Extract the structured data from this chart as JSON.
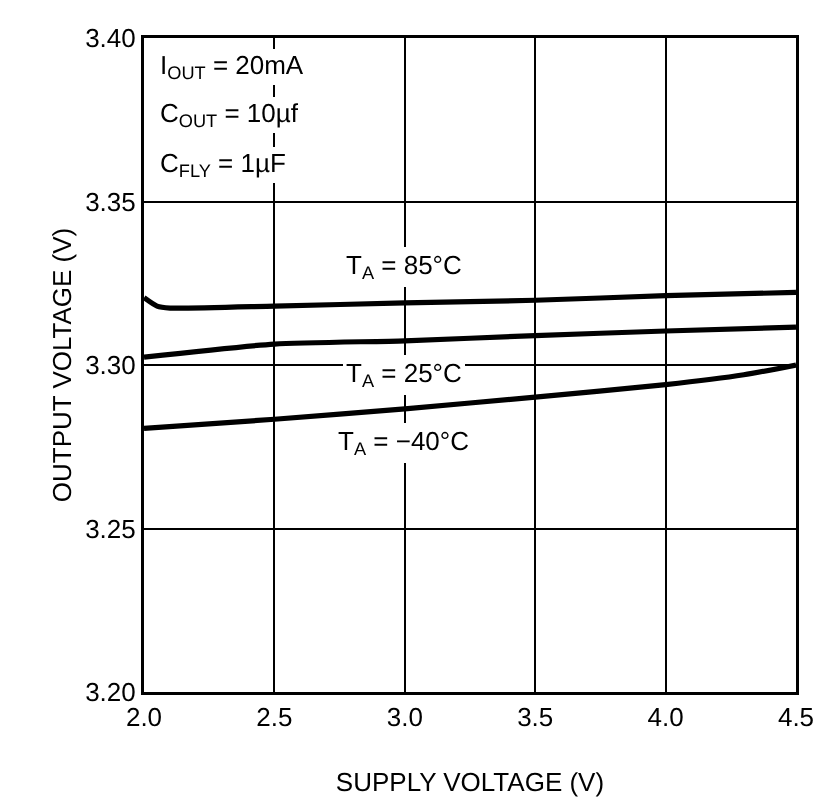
{
  "chart_data": {
    "type": "line",
    "xlabel": "SUPPLY VOLTAGE (V)",
    "ylabel": "OUTPUT VOLTAGE (V)",
    "xlim": [
      2.0,
      4.5
    ],
    "xticks": [
      {
        "value": 2,
        "label": "2.0"
      },
      2.5,
      {
        "value": 3,
        "label": "3.0"
      },
      3.5,
      {
        "value": 4,
        "label": "4.0"
      },
      4.5
    ],
    "ylim": [
      3.2,
      3.4
    ],
    "yticks": [
      {
        "value": 3.2,
        "label": "3.20"
      },
      3.25,
      {
        "value": 3.3,
        "label": "3.30"
      },
      3.35,
      {
        "value": 3.4,
        "label": "3.40"
      }
    ],
    "grid": true,
    "legend": false,
    "marker": "none",
    "line_style": "solid",
    "series": [
      {
        "name": "T$_{A}$ = 85°C",
        "color": "#000000",
        "x": [
          2.0,
          2.05,
          2.1,
          2.5,
          3.0,
          3.5,
          4.0,
          4.5
        ],
        "values": [
          3.3206,
          3.318,
          3.3174,
          3.318,
          3.319,
          3.3198,
          3.3212,
          3.3222
        ]
      },
      {
        "name": "T$_{A}$ = 25°C",
        "color": "#000000",
        "x": [
          2.0,
          2.5,
          3.0,
          3.5,
          4.0,
          4.5
        ],
        "values": [
          3.3024,
          3.3064,
          3.3074,
          3.309,
          3.3104,
          3.3116
        ]
      },
      {
        "name": "T$_{A}$ = −40°C",
        "color": "#000000",
        "x": [
          2.0,
          2.5,
          3.0,
          3.5,
          4.0,
          4.3,
          4.5
        ],
        "values": [
          3.2806,
          3.2834,
          3.2866,
          3.2902,
          3.294,
          3.297,
          3.3
        ]
      }
    ],
    "annotations": [
      "I$_{OUT}$ = 20mA",
      "C$_{OUT}$ = 10µf",
      "C$_{FLY}$ = 1µF"
    ]
  }
}
